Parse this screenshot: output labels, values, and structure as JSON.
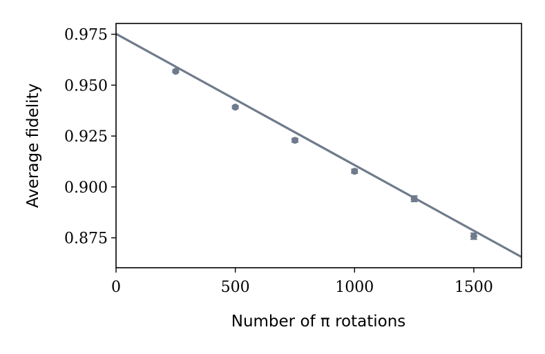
{
  "chart_data": {
    "type": "scatter",
    "xlabel": "Number of π rotations",
    "ylabel": "Average fidelity",
    "xlim": [
      0,
      1700
    ],
    "ylim": [
      0.8603,
      0.9803
    ],
    "x_ticks": [
      0,
      500,
      1000,
      1500
    ],
    "x_tick_labels": [
      "0",
      "500",
      "1000",
      "1500"
    ],
    "y_ticks": [
      0.875,
      0.9,
      0.925,
      0.95,
      0.975
    ],
    "y_tick_labels": [
      "0.875",
      "0.900",
      "0.925",
      "0.950",
      "0.975"
    ],
    "grid": false,
    "color": "#6f7b8c",
    "series": [
      {
        "kind": "points",
        "x": [
          250,
          500,
          750,
          1000,
          1250,
          1500
        ],
        "y": [
          0.9568,
          0.9392,
          0.9229,
          0.9077,
          0.8942,
          0.8758
        ],
        "yerr": [
          0.0006,
          0.0007,
          0.0009,
          0.001,
          0.0014,
          0.0015
        ]
      },
      {
        "kind": "fit",
        "x": [
          0,
          1700
        ],
        "y": [
          0.9752,
          0.8656
        ]
      }
    ]
  }
}
